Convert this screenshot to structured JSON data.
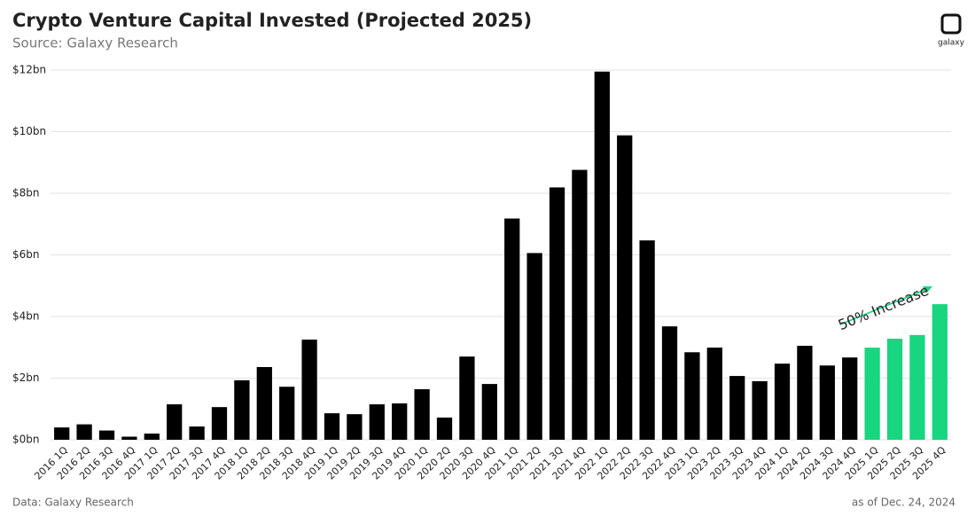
{
  "chart_data": {
    "type": "bar",
    "title": "Crypto Venture Capital Invested (Projected 2025)",
    "subtitle": "Source: Galaxy Research",
    "logo": "galaxy",
    "annotation": "50% Increase",
    "footer_left": "Data: Galaxy Research",
    "footer_right": "as of Dec. 24, 2024",
    "categories": [
      "2016 1Q",
      "2016 2Q",
      "2016 3Q",
      "2016 4Q",
      "2017 1Q",
      "2017 2Q",
      "2017 3Q",
      "2017 4Q",
      "2018 1Q",
      "2018 2Q",
      "2018 3Q",
      "2018 4Q",
      "2019 1Q",
      "2019 2Q",
      "2019 3Q",
      "2019 4Q",
      "2020 1Q",
      "2020 2Q",
      "2020 3Q",
      "2020 4Q",
      "2021 1Q",
      "2021 2Q",
      "2021 3Q",
      "2021 4Q",
      "2022 1Q",
      "2022 2Q",
      "2022 3Q",
      "2022 4Q",
      "2023 1Q",
      "2023 2Q",
      "2023 3Q",
      "2023 4Q",
      "2024 1Q",
      "2024 2Q",
      "2024 3Q",
      "2024 4Q",
      "2025 1Q",
      "2025 2Q",
      "2025 3Q",
      "2025 4Q"
    ],
    "values": [
      0.4,
      0.5,
      0.3,
      0.1,
      0.2,
      1.15,
      0.43,
      1.06,
      1.93,
      2.36,
      1.72,
      3.25,
      0.86,
      0.83,
      1.15,
      1.18,
      1.64,
      0.72,
      2.7,
      1.81,
      7.18,
      6.06,
      8.19,
      8.76,
      11.95,
      9.88,
      6.47,
      3.68,
      2.84,
      2.99,
      2.07,
      1.9,
      2.47,
      3.05,
      2.41,
      2.67,
      2.99,
      3.28,
      3.4,
      4.4
    ],
    "colors": [
      "#000000",
      "#000000",
      "#000000",
      "#000000",
      "#000000",
      "#000000",
      "#000000",
      "#000000",
      "#000000",
      "#000000",
      "#000000",
      "#000000",
      "#000000",
      "#000000",
      "#000000",
      "#000000",
      "#000000",
      "#000000",
      "#000000",
      "#000000",
      "#000000",
      "#000000",
      "#000000",
      "#000000",
      "#000000",
      "#000000",
      "#000000",
      "#000000",
      "#000000",
      "#000000",
      "#000000",
      "#000000",
      "#000000",
      "#000000",
      "#000000",
      "#000000",
      "#17d67f",
      "#17d67f",
      "#17d67f",
      "#17d67f"
    ],
    "ylim": [
      0,
      12
    ],
    "yticks": [
      {
        "value": 0,
        "label": "$0bn"
      },
      {
        "value": 2,
        "label": "$2bn"
      },
      {
        "value": 4,
        "label": "$4bn"
      },
      {
        "value": 6,
        "label": "$6bn"
      },
      {
        "value": 8,
        "label": "$8bn"
      },
      {
        "value": 10,
        "label": "$10bn"
      },
      {
        "value": 12,
        "label": "$12bn"
      }
    ],
    "grid": true
  }
}
